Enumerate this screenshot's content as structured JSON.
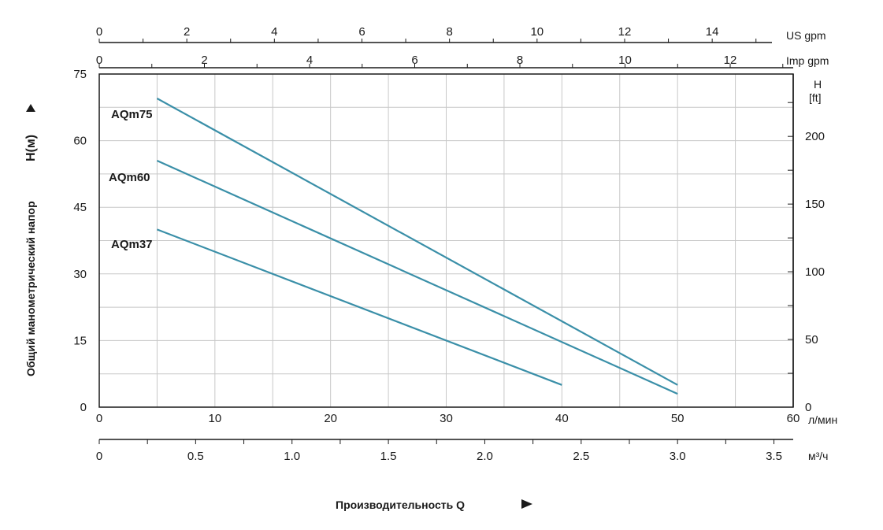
{
  "chart_data": {
    "type": "line",
    "x_axis": {
      "unit": "л/мин",
      "range": [
        0,
        60
      ],
      "ticks": [
        "0",
        "10",
        "20",
        "30",
        "40",
        "50",
        "60"
      ]
    },
    "y_axis": {
      "label": "Общий манометрический напор",
      "label_symbol": "H(м)",
      "range": [
        0,
        75
      ],
      "ticks": [
        "0",
        "15",
        "30",
        "45",
        "60",
        "75"
      ]
    },
    "y_axis_right": {
      "unit_top": "H",
      "unit_bottom": "[ft]",
      "ticks": [
        "0",
        "50",
        "100",
        "150",
        "200"
      ]
    },
    "x_axis_top_us": {
      "unit": "US gpm",
      "ticks": [
        "0",
        "2",
        "4",
        "6",
        "8",
        "10",
        "12",
        "14"
      ]
    },
    "x_axis_top_imp": {
      "unit": "Imp gpm",
      "ticks": [
        "0",
        "2",
        "4",
        "6",
        "8",
        "10",
        "12"
      ]
    },
    "x_axis_bottom_m3h": {
      "unit": "м³/ч",
      "ticks": [
        "0",
        "0.5",
        "1.0",
        "1.5",
        "2.0",
        "2.5",
        "3.0",
        "3.5"
      ]
    },
    "x_title": "Производительность Q",
    "series": [
      {
        "name": "AQm75",
        "x": [
          5,
          50
        ],
        "y": [
          69.5,
          5
        ]
      },
      {
        "name": "AQm60",
        "x": [
          5,
          50
        ],
        "y": [
          55.5,
          3
        ]
      },
      {
        "name": "AQm37",
        "x": [
          5,
          40
        ],
        "y": [
          40,
          5
        ]
      }
    ],
    "grid": true,
    "line_color": "#3a8fa8"
  }
}
